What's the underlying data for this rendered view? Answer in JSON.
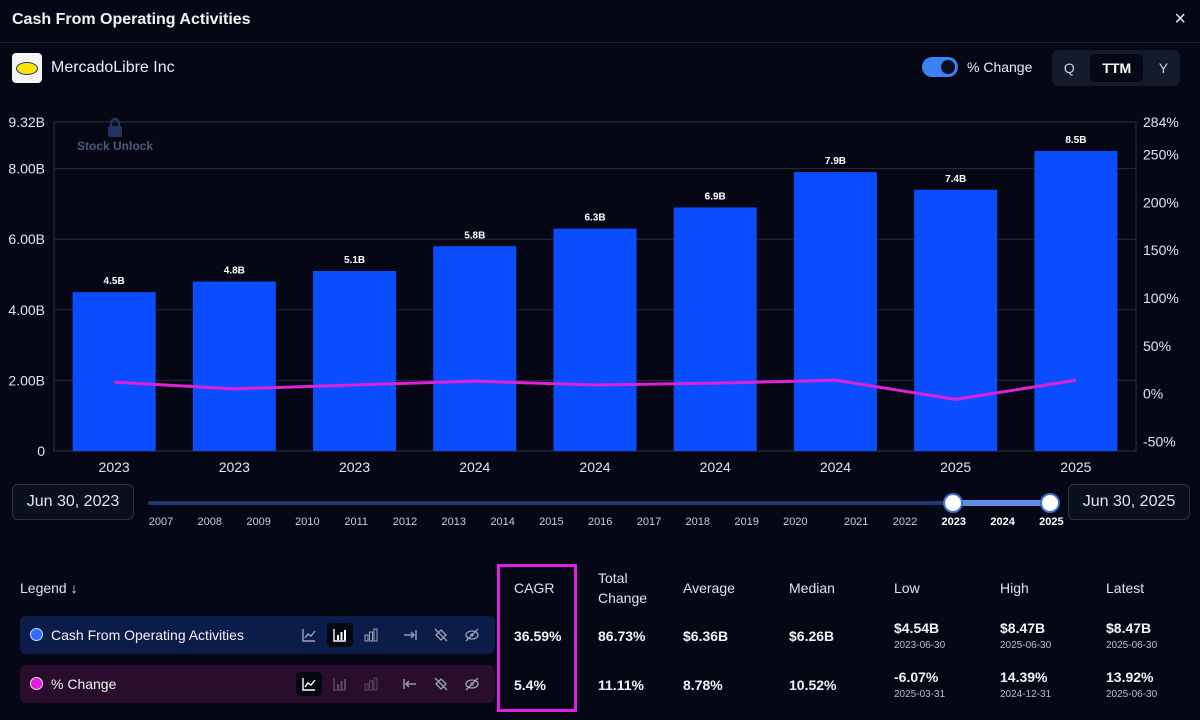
{
  "title": "Cash From Operating Activities",
  "close_icon": "×",
  "company": "MercadoLibre Inc",
  "toggle_label": "% Change",
  "periods": [
    "Q",
    "TTM",
    "Y"
  ],
  "active_period": "TTM",
  "colors": {
    "bar": "#0a4dff",
    "line": "#e020d8",
    "background": "#050814",
    "highlight": "#e01ee8"
  },
  "chart_data": {
    "type": "bar",
    "categories": [
      "2023",
      "2023",
      "2023",
      "2024",
      "2024",
      "2024",
      "2024",
      "2025",
      "2025"
    ],
    "series": [
      {
        "name": "Cash From Operating Activities",
        "type": "bar",
        "axis": "left",
        "values": [
          4.5,
          4.8,
          5.1,
          5.8,
          6.3,
          6.9,
          7.9,
          7.4,
          8.5
        ],
        "labels": [
          "4.5B",
          "4.8B",
          "5.1B",
          "5.8B",
          "6.3B",
          "6.9B",
          "7.9B",
          "7.4B",
          "8.5B"
        ]
      },
      {
        "name": "% Change",
        "type": "line",
        "axis": "right",
        "values": [
          12,
          5,
          9,
          13,
          9,
          11,
          14,
          -6,
          14
        ]
      }
    ],
    "y_left": {
      "min": 0,
      "max": 9.32,
      "ticks": [
        "9.32B",
        "8.00B",
        "6.00B",
        "4.00B",
        "2.00B",
        "0"
      ],
      "tick_values": [
        9.32,
        8,
        6,
        4,
        2,
        0
      ]
    },
    "y_right": {
      "min": -60,
      "max": 284,
      "ticks": [
        "284%",
        "250%",
        "200%",
        "150%",
        "100%",
        "50%",
        "0%",
        "-50%"
      ],
      "tick_values": [
        284,
        250,
        200,
        150,
        100,
        50,
        0,
        -50
      ]
    },
    "watermark": "Stock Unlock"
  },
  "range": {
    "start": "Jun 30, 2023",
    "end": "Jun 30, 2025",
    "years": [
      "2007",
      "2008",
      "2009",
      "2010",
      "2011",
      "2012",
      "2013",
      "2014",
      "2015",
      "2016",
      "2017",
      "2018",
      "2019",
      "2020",
      "2021",
      "2022",
      "2023",
      "2024",
      "2025"
    ],
    "selected_years": [
      "2023",
      "2024",
      "2025"
    ]
  },
  "stats": {
    "legend_header": "Legend ↓",
    "headers": [
      "CAGR",
      "Total Change",
      "Average",
      "Median",
      "Low",
      "High",
      "Latest"
    ],
    "rows": [
      {
        "name": "Cash From Operating Activities",
        "color": "#2f6bff",
        "cagr": "36.59%",
        "total_change": "86.73%",
        "average": "$6.36B",
        "median": "$6.26B",
        "low": "$4.54B",
        "low_date": "2023-06-30",
        "high": "$8.47B",
        "high_date": "2025-06-30",
        "latest": "$8.47B",
        "latest_date": "2025-06-30"
      },
      {
        "name": "% Change",
        "color": "#e020d8",
        "cagr": "5.4%",
        "total_change": "11.11%",
        "average": "8.78%",
        "median": "10.52%",
        "low": "-6.07%",
        "low_date": "2025-03-31",
        "high": "14.39%",
        "high_date": "2024-12-31",
        "latest": "13.92%",
        "latest_date": "2025-06-30"
      }
    ]
  }
}
